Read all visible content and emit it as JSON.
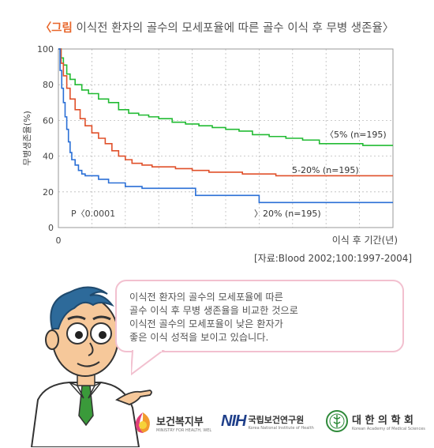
{
  "title": {
    "prefix": "〈그림",
    "text": " 이식전 환자의 골수의 모세포율에 따른 골수 이식 후 무병 생존율〉"
  },
  "chart_data": {
    "type": "line",
    "title": "〈그림 이식전 환자의 골수의 모세포율에 따른 골수 이식 후 무병 생존율〉",
    "xlabel": "이식 후 기간(년)",
    "ylabel": "무병생존율(%)",
    "xlim": [
      0,
      10
    ],
    "ylim": [
      0,
      100
    ],
    "x_ticks": [
      "0"
    ],
    "y_ticks": [
      "0",
      "20",
      "40",
      "60",
      "80",
      "100"
    ],
    "grid": true,
    "annotation": "P〈0.0001",
    "series": [
      {
        "name": "〈5% (n=195)",
        "color": "#22bb33",
        "x": [
          0,
          0.08,
          0.15,
          0.25,
          0.35,
          0.5,
          0.7,
          0.9,
          1.2,
          1.5,
          1.8,
          2.1,
          2.4,
          2.7,
          3.0,
          3.4,
          3.8,
          4.2,
          4.6,
          5.0,
          5.4,
          5.8,
          6.3,
          6.8,
          7.3,
          7.8,
          8.5,
          9.1,
          10
        ],
        "y": [
          100,
          95,
          91,
          86,
          83,
          80,
          77,
          75,
          72,
          70,
          66,
          64,
          63,
          62,
          61,
          59,
          58,
          57,
          56,
          55,
          54,
          52,
          51,
          50,
          49,
          47,
          47,
          46,
          46
        ]
      },
      {
        "name": "5-20% (n=195)",
        "color": "#e0502a",
        "x": [
          0,
          0.08,
          0.15,
          0.25,
          0.35,
          0.5,
          0.65,
          0.8,
          1.0,
          1.2,
          1.4,
          1.6,
          1.8,
          2.0,
          2.2,
          2.5,
          2.8,
          3.1,
          3.5,
          4.0,
          4.5,
          5.0,
          5.5,
          6.0,
          6.5,
          7.0,
          7.5,
          8.0,
          9.0,
          10
        ],
        "y": [
          100,
          92,
          85,
          78,
          72,
          66,
          61,
          57,
          53,
          50,
          47,
          43,
          40,
          38,
          36,
          35,
          34,
          34,
          33,
          32,
          31,
          31,
          30,
          30,
          29,
          29,
          29,
          29,
          29,
          29
        ]
      },
      {
        "name": "〉20% (n=195)",
        "color": "#2a6fd6",
        "x": [
          0,
          0.05,
          0.1,
          0.15,
          0.2,
          0.25,
          0.3,
          0.35,
          0.4,
          0.5,
          0.6,
          0.7,
          0.8,
          1.0,
          1.2,
          1.5,
          2.0,
          2.5,
          3.0,
          3.5,
          4.1,
          4.5,
          5.0,
          5.5,
          6.0,
          6.5,
          7.0,
          8.0,
          9.0,
          10
        ],
        "y": [
          100,
          88,
          78,
          70,
          62,
          55,
          48,
          42,
          38,
          35,
          32,
          30,
          29,
          29,
          27,
          25,
          23,
          22,
          22,
          22,
          18,
          18,
          18,
          18,
          14,
          14,
          14,
          14,
          14,
          14
        ]
      }
    ]
  },
  "source": "[자료:Blood 2002;100:1997-2004]",
  "bubble": {
    "lines": [
      "이식전 환자의 골수의 모세포율에 따른",
      "골수 이식 후 무병 생존율을 비교한 것으로",
      "이식전 골수의 모세포율이 낮은 환자가",
      "좋은 이식 성적을 보이고 있습니다."
    ]
  },
  "logos": {
    "mohw": {
      "name": "보건복지부",
      "sub": "MINISTRY FOR HEALTH, WELFARE AND FAMILY AFFAIRS"
    },
    "nih": {
      "mark": "NIH",
      "name": "국립보건연구원",
      "sub": "Korea National Institute of Health"
    },
    "kams": {
      "name": "대 한 의 학 회",
      "sub": "Korean Academy of Medical Sciences"
    }
  }
}
